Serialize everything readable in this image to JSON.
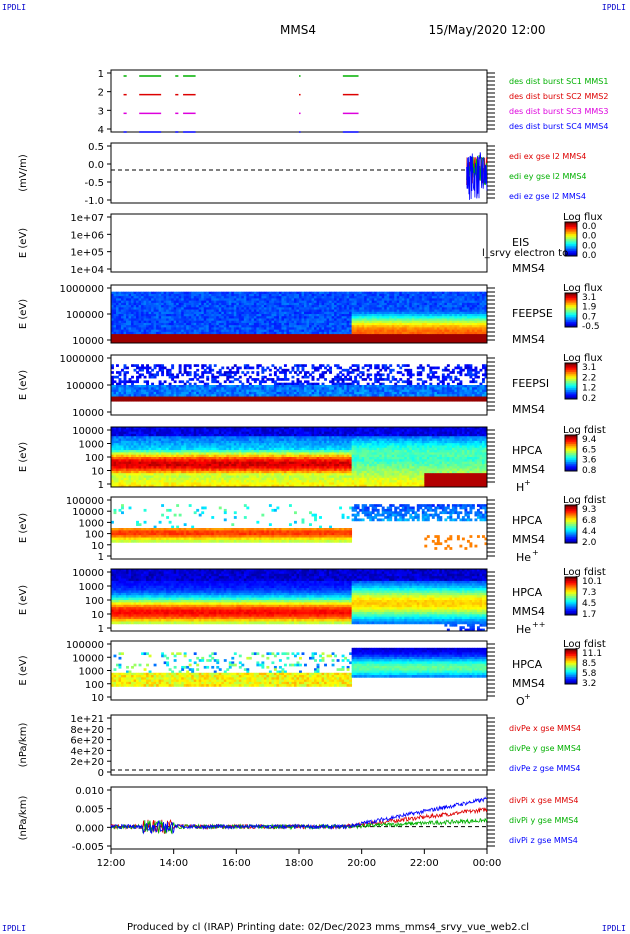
{
  "header": {
    "corner_tl": "IPDLI",
    "corner_tr": "IPDLI",
    "corner_bl": "IPDLI",
    "corner_br": "IPDLI",
    "spacecraft": "MMS4",
    "date_time": "15/May/2020 12:00",
    "footer": "Produced by cl (IRAP)   Printing date: 02/Dec/2023   mms_mms4_srvy_vue_web2.cl"
  },
  "colors": {
    "black": "#000000",
    "blue": "#0000ff",
    "green": "#00b000",
    "red": "#dd0000",
    "magenta": "#dd00dd",
    "navy": "#0000aa"
  },
  "chart_data": [
    {
      "id": "burst",
      "type": "timeline",
      "yticks": [
        "1",
        "2",
        "3",
        "4"
      ],
      "ylim": [
        0.5,
        4.5
      ],
      "series": [
        {
          "name": "des dist burst SC1 MMS1",
          "level": 4,
          "color": "#00b000",
          "segments": [
            [
              12.4,
              12.5
            ],
            [
              12.9,
              13.6
            ],
            [
              14.05,
              14.15
            ],
            [
              14.3,
              14.7
            ],
            [
              18.0,
              18.05
            ],
            [
              19.4,
              19.9
            ]
          ]
        },
        {
          "name": "des dist burst SC2 MMS2",
          "level": 3,
          "color": "#dd0000",
          "segments": [
            [
              12.4,
              12.5
            ],
            [
              12.9,
              13.6
            ],
            [
              14.05,
              14.15
            ],
            [
              14.3,
              14.7
            ],
            [
              18.0,
              18.05
            ],
            [
              19.4,
              19.9
            ]
          ]
        },
        {
          "name": "des dist burst SC3 MMS3",
          "level": 2,
          "color": "#dd00dd",
          "segments": [
            [
              12.4,
              12.5
            ],
            [
              12.9,
              13.6
            ],
            [
              14.05,
              14.15
            ],
            [
              14.3,
              14.7
            ],
            [
              18.0,
              18.05
            ],
            [
              19.4,
              19.9
            ]
          ]
        },
        {
          "name": "des dist burst SC4 MMS4",
          "level": 1,
          "color": "#0000ff",
          "segments": [
            [
              12.4,
              12.5
            ],
            [
              12.9,
              13.6
            ],
            [
              14.05,
              14.15
            ],
            [
              14.3,
              14.7
            ],
            [
              18.0,
              18.05
            ],
            [
              19.4,
              19.9
            ]
          ]
        }
      ]
    },
    {
      "id": "edi",
      "type": "line",
      "ylabel": "(mV/m)",
      "yticks": [
        "0.5",
        "0.0",
        "-0.5",
        "-1.0"
      ],
      "ylim": [
        -1.1,
        0.9
      ],
      "zero_line": true,
      "series": [
        {
          "name": "edi ex gse l2 MMS4",
          "color": "#dd0000"
        },
        {
          "name": "edi ey gse l2 MMS4",
          "color": "#00b000"
        },
        {
          "name": "edi ez gse l2 MMS4",
          "color": "#0000ff"
        }
      ],
      "active_window": [
        23.1,
        24.0
      ]
    },
    {
      "id": "eis",
      "type": "heatmap",
      "ylabel": "E (eV)",
      "yticks": [
        "1e+07",
        "1e+06",
        "1e+05",
        "1e+04"
      ],
      "instrument": "EIS",
      "spacecraft": "MMS4",
      "overlay_text": "l_srvy electron to",
      "colorbar_title": "Log flux",
      "colorbar_ticks": [
        "0.0",
        "0.0",
        "0.0",
        "0.0"
      ],
      "empty": true
    },
    {
      "id": "feepse",
      "type": "heatmap",
      "ylabel": "E (eV)",
      "yticks": [
        "1000000",
        "100000",
        "10000"
      ],
      "instrument": "FEEPSE",
      "spacecraft": "MMS4",
      "colorbar_title": "Log flux",
      "colorbar_ticks": [
        "3.1",
        "1.9",
        "0.7",
        "-0.5"
      ]
    },
    {
      "id": "feepsi",
      "type": "heatmap",
      "ylabel": "E (eV)",
      "yticks": [
        "1000000",
        "100000",
        "10000"
      ],
      "instrument": "FEEPSI",
      "spacecraft": "MMS4",
      "colorbar_title": "Log flux",
      "colorbar_ticks": [
        "3.1",
        "2.2",
        "1.2",
        "0.2"
      ]
    },
    {
      "id": "hpca_h",
      "type": "heatmap",
      "ylabel": "E (eV)",
      "yticks": [
        "10000",
        "1000",
        "100",
        "10",
        "1"
      ],
      "instrument": "HPCA",
      "spacecraft": "MMS4",
      "species": "H",
      "charge": "+",
      "colorbar_title": "Log fdist",
      "colorbar_ticks": [
        "9.4",
        "6.5",
        "3.6",
        "0.8"
      ]
    },
    {
      "id": "hpca_he",
      "type": "heatmap",
      "ylabel": "E (eV)",
      "yticks": [
        "100000",
        "10000",
        "1000",
        "100",
        "10",
        "1"
      ],
      "instrument": "HPCA",
      "spacecraft": "MMS4",
      "species": "He",
      "charge": "+",
      "colorbar_title": "Log fdist",
      "colorbar_ticks": [
        "9.3",
        "6.8",
        "4.4",
        "2.0"
      ]
    },
    {
      "id": "hpca_hepp",
      "type": "heatmap",
      "ylabel": "E (eV)",
      "yticks": [
        "10000",
        "1000",
        "100",
        "10",
        "1"
      ],
      "instrument": "HPCA",
      "spacecraft": "MMS4",
      "species": "He",
      "charge": "++",
      "colorbar_title": "Log fdist",
      "colorbar_ticks": [
        "10.1",
        "7.3",
        "4.5",
        "1.7"
      ]
    },
    {
      "id": "hpca_o",
      "type": "heatmap",
      "ylabel": "E (eV)",
      "yticks": [
        "100000",
        "10000",
        "1000",
        "100",
        "10"
      ],
      "instrument": "HPCA",
      "spacecraft": "MMS4",
      "species": "O",
      "charge": "+",
      "colorbar_title": "Log fdist",
      "colorbar_ticks": [
        "11.1",
        "8.5",
        "5.8",
        "3.2"
      ]
    },
    {
      "id": "divpe",
      "type": "line",
      "ylabel": "(nPa/km)",
      "yticks": [
        "1e+21",
        "8e+20",
        "6e+20",
        "4e+20",
        "2e+20",
        "0"
      ],
      "ylim": [
        -1e+20,
        1.1e+21
      ],
      "zero_line": true,
      "series": [
        {
          "name": "divPe x gse MMS4",
          "color": "#dd0000"
        },
        {
          "name": "divPe y gse MMS4",
          "color": "#00b000"
        },
        {
          "name": "divPe z gse MMS4",
          "color": "#0000ff"
        }
      ]
    },
    {
      "id": "divpi",
      "type": "line",
      "ylabel": "(nPa/km)",
      "yticks": [
        "0.010",
        "0.005",
        "0.000",
        "-0.005"
      ],
      "ylim": [
        -0.0065,
        0.0115
      ],
      "zero_line": true,
      "series": [
        {
          "name": "divPi x gse MMS4",
          "color": "#dd0000"
        },
        {
          "name": "divPi y gse MMS4",
          "color": "#00b000"
        },
        {
          "name": "divPi z gse MMS4",
          "color": "#0000ff"
        }
      ],
      "xticks": [
        "12:00",
        "14:00",
        "16:00",
        "18:00",
        "20:00",
        "22:00",
        "00:00"
      ]
    }
  ]
}
